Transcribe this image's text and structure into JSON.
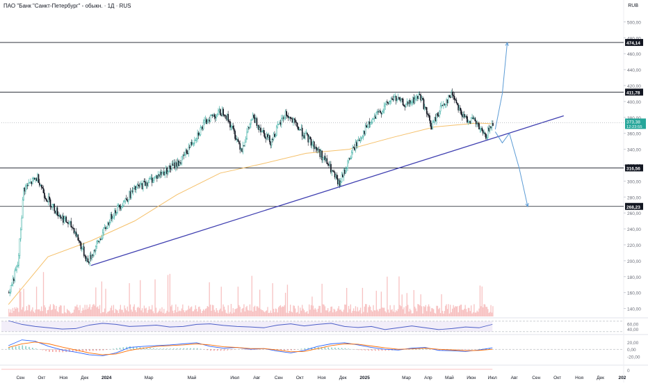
{
  "header": {
    "title": "ПАО \"Банк \"Санкт-Петербург\" - обыкн. · 1Д · RUS",
    "currency": "RUB"
  },
  "colors": {
    "candle_up": "#26a69a",
    "candle_down": "#131722",
    "ma": "#f5c06a",
    "trendline": "#3f3fb0",
    "arrows": "#5b9bd5",
    "volume": "#f4a6a6",
    "rsi": "#4a5cc7",
    "rsi_band": "#ede7f6",
    "macd_line": "#2962ff",
    "signal_line": "#ff6d00",
    "current_price_badge": "#26a69a"
  },
  "chart_data": [
    {
      "type": "line",
      "name": "price",
      "ylim": [
        130,
        510
      ],
      "y_ticks": [
        "500,00",
        "480,00",
        "460,00",
        "440,00",
        "420,00",
        "400,00",
        "380,00",
        "360,00",
        "340,00",
        "320,00",
        "300,00",
        "280,00",
        "260,00",
        "240,00",
        "220,00",
        "200,00",
        "180,00",
        "160,00",
        "140,00"
      ],
      "x_ticks": [
        "Сен",
        "Окт",
        "Ноя",
        "Дек",
        "2024",
        "Мар",
        "Май",
        "Июл",
        "Авг",
        "Сен",
        "Окт",
        "Ноя",
        "Дек",
        "2025",
        "Мар",
        "Апр",
        "Май",
        "Июн",
        "Июл",
        "Авг",
        "Сен",
        "Окт",
        "Ноя",
        "Дек",
        "202"
      ],
      "levels": [
        {
          "value": 474.14,
          "label": "474,14"
        },
        {
          "value": 411.78,
          "label": "411,78"
        },
        {
          "value": 316.56,
          "label": "316,56"
        },
        {
          "value": 268.23,
          "label": "268,23"
        }
      ],
      "current_price": {
        "value": 373.38,
        "label": "373,38",
        "countdown": "12:23:55"
      },
      "close_series": [
        {
          "date": "2023-08-15",
          "close": 160
        },
        {
          "date": "2023-08-28",
          "close": 195
        },
        {
          "date": "2023-09-05",
          "close": 290
        },
        {
          "date": "2023-09-25",
          "close": 305
        },
        {
          "date": "2023-10-05",
          "close": 282
        },
        {
          "date": "2023-10-25",
          "close": 258
        },
        {
          "date": "2023-11-15",
          "close": 240
        },
        {
          "date": "2023-12-05",
          "close": 198
        },
        {
          "date": "2023-12-15",
          "close": 215
        },
        {
          "date": "2024-01-10",
          "close": 260
        },
        {
          "date": "2024-02-10",
          "close": 290
        },
        {
          "date": "2024-03-10",
          "close": 305
        },
        {
          "date": "2024-04-15",
          "close": 325
        },
        {
          "date": "2024-05-05",
          "close": 355
        },
        {
          "date": "2024-05-25",
          "close": 380
        },
        {
          "date": "2024-06-15",
          "close": 388
        },
        {
          "date": "2024-07-10",
          "close": 340
        },
        {
          "date": "2024-07-25",
          "close": 380
        },
        {
          "date": "2024-08-20",
          "close": 350
        },
        {
          "date": "2024-09-10",
          "close": 385
        },
        {
          "date": "2024-10-05",
          "close": 360
        },
        {
          "date": "2024-10-25",
          "close": 340
        },
        {
          "date": "2024-11-10",
          "close": 320
        },
        {
          "date": "2024-11-25",
          "close": 295
        },
        {
          "date": "2024-12-15",
          "close": 340
        },
        {
          "date": "2025-01-01",
          "close": 365
        },
        {
          "date": "2025-01-20",
          "close": 385
        },
        {
          "date": "2025-02-10",
          "close": 405
        },
        {
          "date": "2025-03-01",
          "close": 395
        },
        {
          "date": "2025-03-20",
          "close": 408
        },
        {
          "date": "2025-04-05",
          "close": 368
        },
        {
          "date": "2025-04-20",
          "close": 395
        },
        {
          "date": "2025-05-05",
          "close": 410
        },
        {
          "date": "2025-05-20",
          "close": 380
        },
        {
          "date": "2025-06-05",
          "close": 375
        },
        {
          "date": "2025-06-20",
          "close": 355
        },
        {
          "date": "2025-07-01",
          "close": 373.38
        }
      ],
      "ma_series": [
        {
          "date": "2023-08-15",
          "close": 145
        },
        {
          "date": "2023-10-10",
          "close": 205
        },
        {
          "date": "2023-12-10",
          "close": 225
        },
        {
          "date": "2024-02-10",
          "close": 250
        },
        {
          "date": "2024-04-10",
          "close": 283
        },
        {
          "date": "2024-06-10",
          "close": 310
        },
        {
          "date": "2024-08-10",
          "close": 322
        },
        {
          "date": "2024-10-10",
          "close": 335
        },
        {
          "date": "2024-12-10",
          "close": 340
        },
        {
          "date": "2025-02-10",
          "close": 355
        },
        {
          "date": "2025-04-10",
          "close": 368
        },
        {
          "date": "2025-06-10",
          "close": 373
        },
        {
          "date": "2025-07-01",
          "close": 372
        }
      ],
      "trendline": [
        {
          "date": "2023-12-10",
          "value": 194
        },
        {
          "date": "2025-10-10",
          "value": 382
        }
      ],
      "scenario_up": [
        {
          "date": "2025-07-05",
          "value": 365
        },
        {
          "date": "2025-07-15",
          "value": 410
        },
        {
          "date": "2025-07-22",
          "value": 474
        }
      ],
      "scenario_down": [
        {
          "date": "2025-07-05",
          "value": 362
        },
        {
          "date": "2025-07-15",
          "value": 348
        },
        {
          "date": "2025-07-25",
          "value": 360
        },
        {
          "date": "2025-08-08",
          "value": 316
        },
        {
          "date": "2025-08-20",
          "value": 268
        }
      ]
    },
    {
      "type": "line",
      "name": "RSI",
      "ylim": [
        27,
        75
      ],
      "y_ticks": [
        "60,00",
        "40,00"
      ],
      "band": [
        30,
        70
      ],
      "values": [
        72,
        58,
        50,
        45,
        40,
        42,
        55,
        62,
        58,
        50,
        52,
        55,
        48,
        50,
        58,
        60,
        54,
        50,
        48,
        45,
        55,
        60,
        52,
        58,
        62,
        50,
        46,
        50,
        38,
        45,
        52,
        45,
        38,
        42,
        48,
        45,
        58
      ]
    },
    {
      "type": "line",
      "name": "MACD",
      "ylim": [
        -38,
        33
      ],
      "y_ticks": [
        "20,00",
        "0,00",
        "-20,00"
      ],
      "macd": [
        10,
        26,
        22,
        8,
        -2,
        -8,
        -15,
        -18,
        -10,
        5,
        8,
        10,
        12,
        15,
        18,
        8,
        3,
        5,
        0,
        2,
        -5,
        -10,
        -3,
        8,
        15,
        18,
        12,
        5,
        0,
        -2,
        3,
        5,
        -3,
        -4,
        -6,
        -2,
        4
      ],
      "signal": [
        5,
        15,
        20,
        15,
        6,
        -2,
        -10,
        -15,
        -13,
        -3,
        3,
        8,
        10,
        12,
        15,
        12,
        7,
        5,
        2,
        2,
        -2,
        -7,
        -6,
        2,
        10,
        15,
        14,
        9,
        4,
        0,
        1,
        3,
        0,
        -2,
        -4,
        -3,
        0
      ]
    }
  ]
}
